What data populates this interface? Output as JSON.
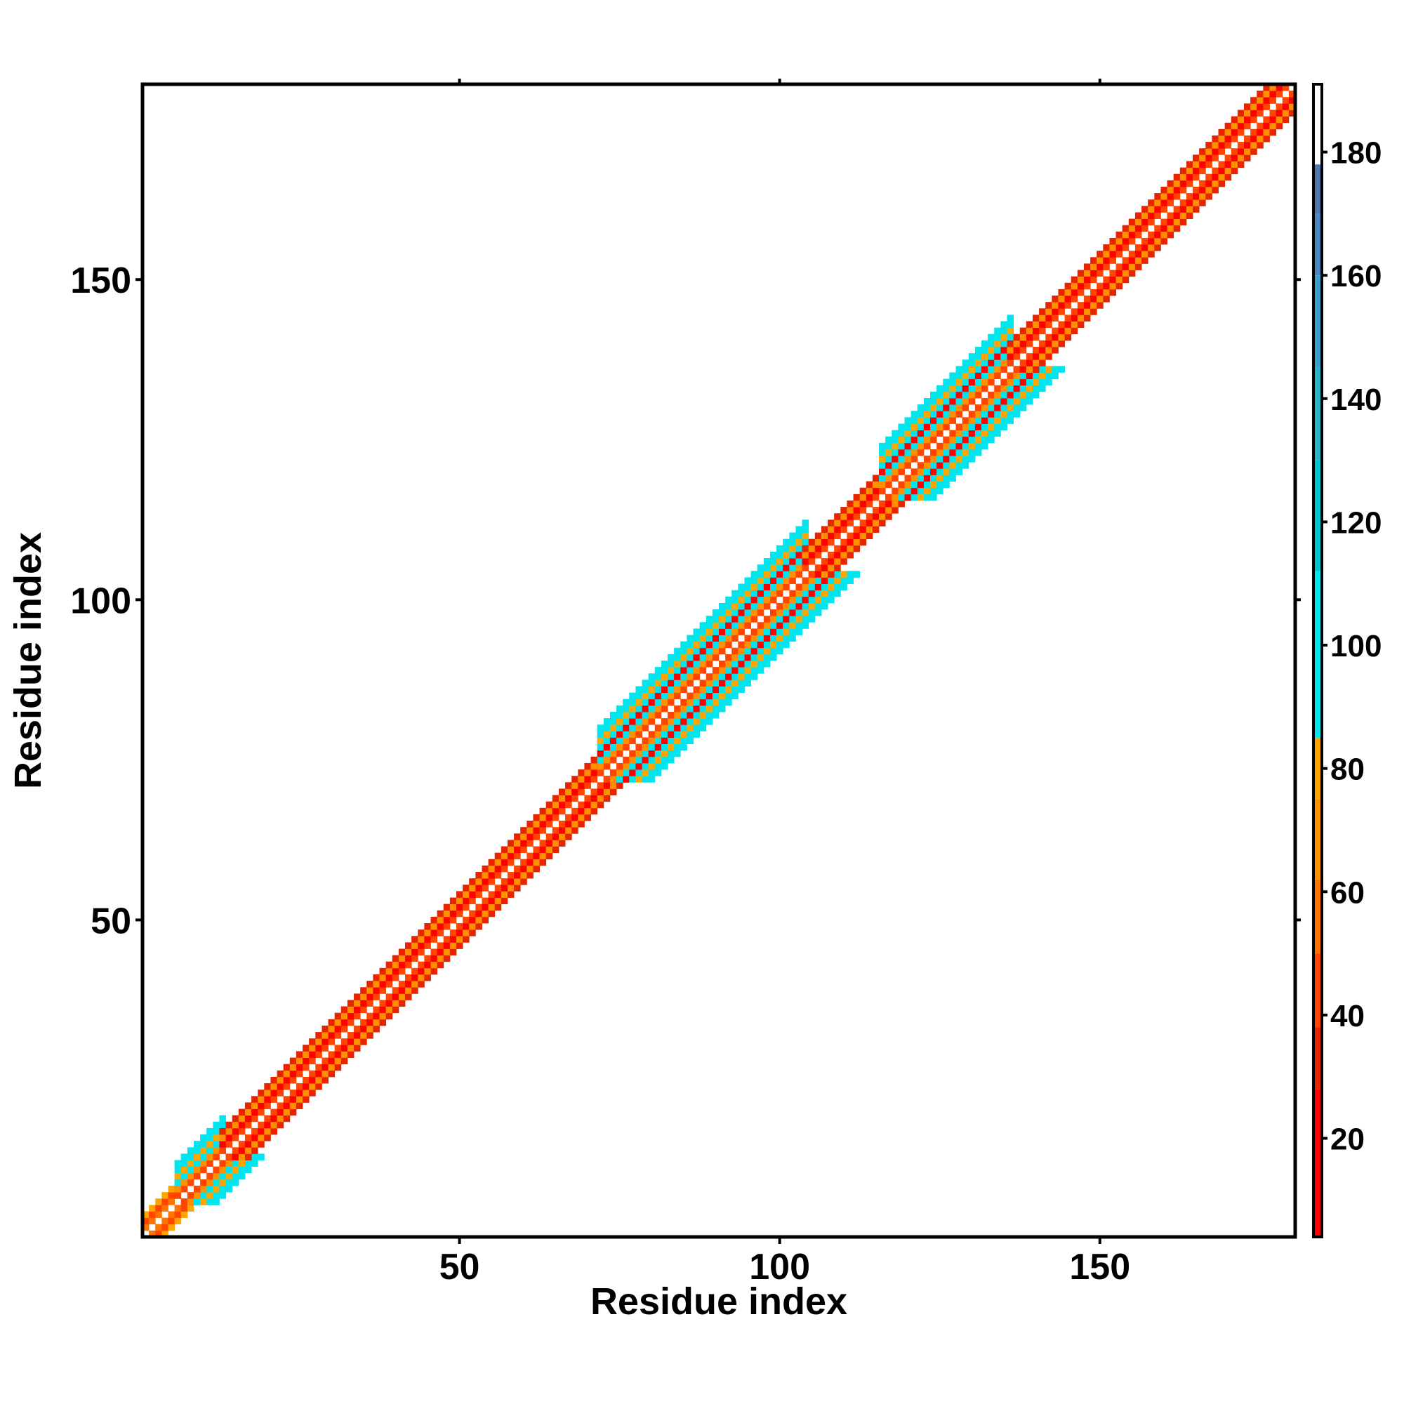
{
  "chart_data": {
    "type": "heatmap",
    "title": "",
    "xlabel": "Residue index",
    "ylabel": "Residue index",
    "xlim": [
      1,
      180
    ],
    "ylim": [
      1,
      180
    ],
    "x_ticks": [
      50,
      100,
      150
    ],
    "y_ticks": [
      50,
      100,
      150
    ],
    "grid": false,
    "symmetric": true,
    "colorbar": {
      "range": [
        4,
        191
      ],
      "ticks": [
        20,
        40,
        60,
        80,
        100,
        120,
        140,
        160,
        180
      ],
      "bands": [
        {
          "from": 4,
          "to": 28,
          "color": "#ff0000"
        },
        {
          "from": 28,
          "to": 38,
          "color": "#e82400"
        },
        {
          "from": 38,
          "to": 50,
          "color": "#ff4500"
        },
        {
          "from": 50,
          "to": 62,
          "color": "#ff7400"
        },
        {
          "from": 62,
          "to": 75,
          "color": "#ff9000"
        },
        {
          "from": 75,
          "to": 85,
          "color": "#ffa500"
        },
        {
          "from": 85,
          "to": 112,
          "color": "#00e5ee"
        },
        {
          "from": 112,
          "to": 130,
          "color": "#00c5cd"
        },
        {
          "from": 130,
          "to": 145,
          "color": "#2ab3c8"
        },
        {
          "from": 145,
          "to": 160,
          "color": "#3aa0c8"
        },
        {
          "from": 160,
          "to": 170,
          "color": "#4a88c0"
        },
        {
          "from": 170,
          "to": 178,
          "color": "#5078b0"
        },
        {
          "from": 178,
          "to": 191,
          "color": "#ffffff"
        }
      ]
    },
    "segments": [
      {
        "start": 1,
        "end": 6,
        "max_offset": 3,
        "profile": [
          [
            1,
            60
          ],
          [
            2,
            40
          ],
          [
            3,
            75
          ]
        ]
      },
      {
        "start": 6,
        "end": 13,
        "max_offset": 6,
        "profile": [
          [
            1,
            40
          ],
          [
            2,
            65
          ],
          [
            3,
            100
          ],
          [
            4,
            80
          ],
          [
            5,
            105
          ],
          [
            6,
            100
          ]
        ]
      },
      {
        "start": 13,
        "end": 72,
        "max_offset": 4,
        "profile": [
          [
            1,
            40
          ],
          [
            2,
            20
          ],
          [
            3,
            70
          ],
          [
            4,
            30
          ]
        ]
      },
      {
        "start": 72,
        "end": 104,
        "max_offset": 8,
        "profile": [
          [
            1,
            40
          ],
          [
            2,
            70
          ],
          [
            3,
            100
          ],
          [
            4,
            20
          ],
          [
            5,
            105
          ],
          [
            6,
            80
          ],
          [
            7,
            100
          ],
          [
            8,
            100
          ]
        ]
      },
      {
        "start": 104,
        "end": 116,
        "max_offset": 4,
        "profile": [
          [
            1,
            40
          ],
          [
            2,
            20
          ],
          [
            3,
            70
          ],
          [
            4,
            30
          ]
        ]
      },
      {
        "start": 116,
        "end": 136,
        "max_offset": 8,
        "profile": [
          [
            1,
            40
          ],
          [
            2,
            70
          ],
          [
            3,
            100
          ],
          [
            4,
            20
          ],
          [
            5,
            105
          ],
          [
            6,
            80
          ],
          [
            7,
            100
          ],
          [
            8,
            100
          ]
        ]
      },
      {
        "start": 136,
        "end": 180,
        "max_offset": 4,
        "profile": [
          [
            1,
            40
          ],
          [
            2,
            20
          ],
          [
            3,
            70
          ],
          [
            4,
            30
          ]
        ]
      }
    ]
  }
}
